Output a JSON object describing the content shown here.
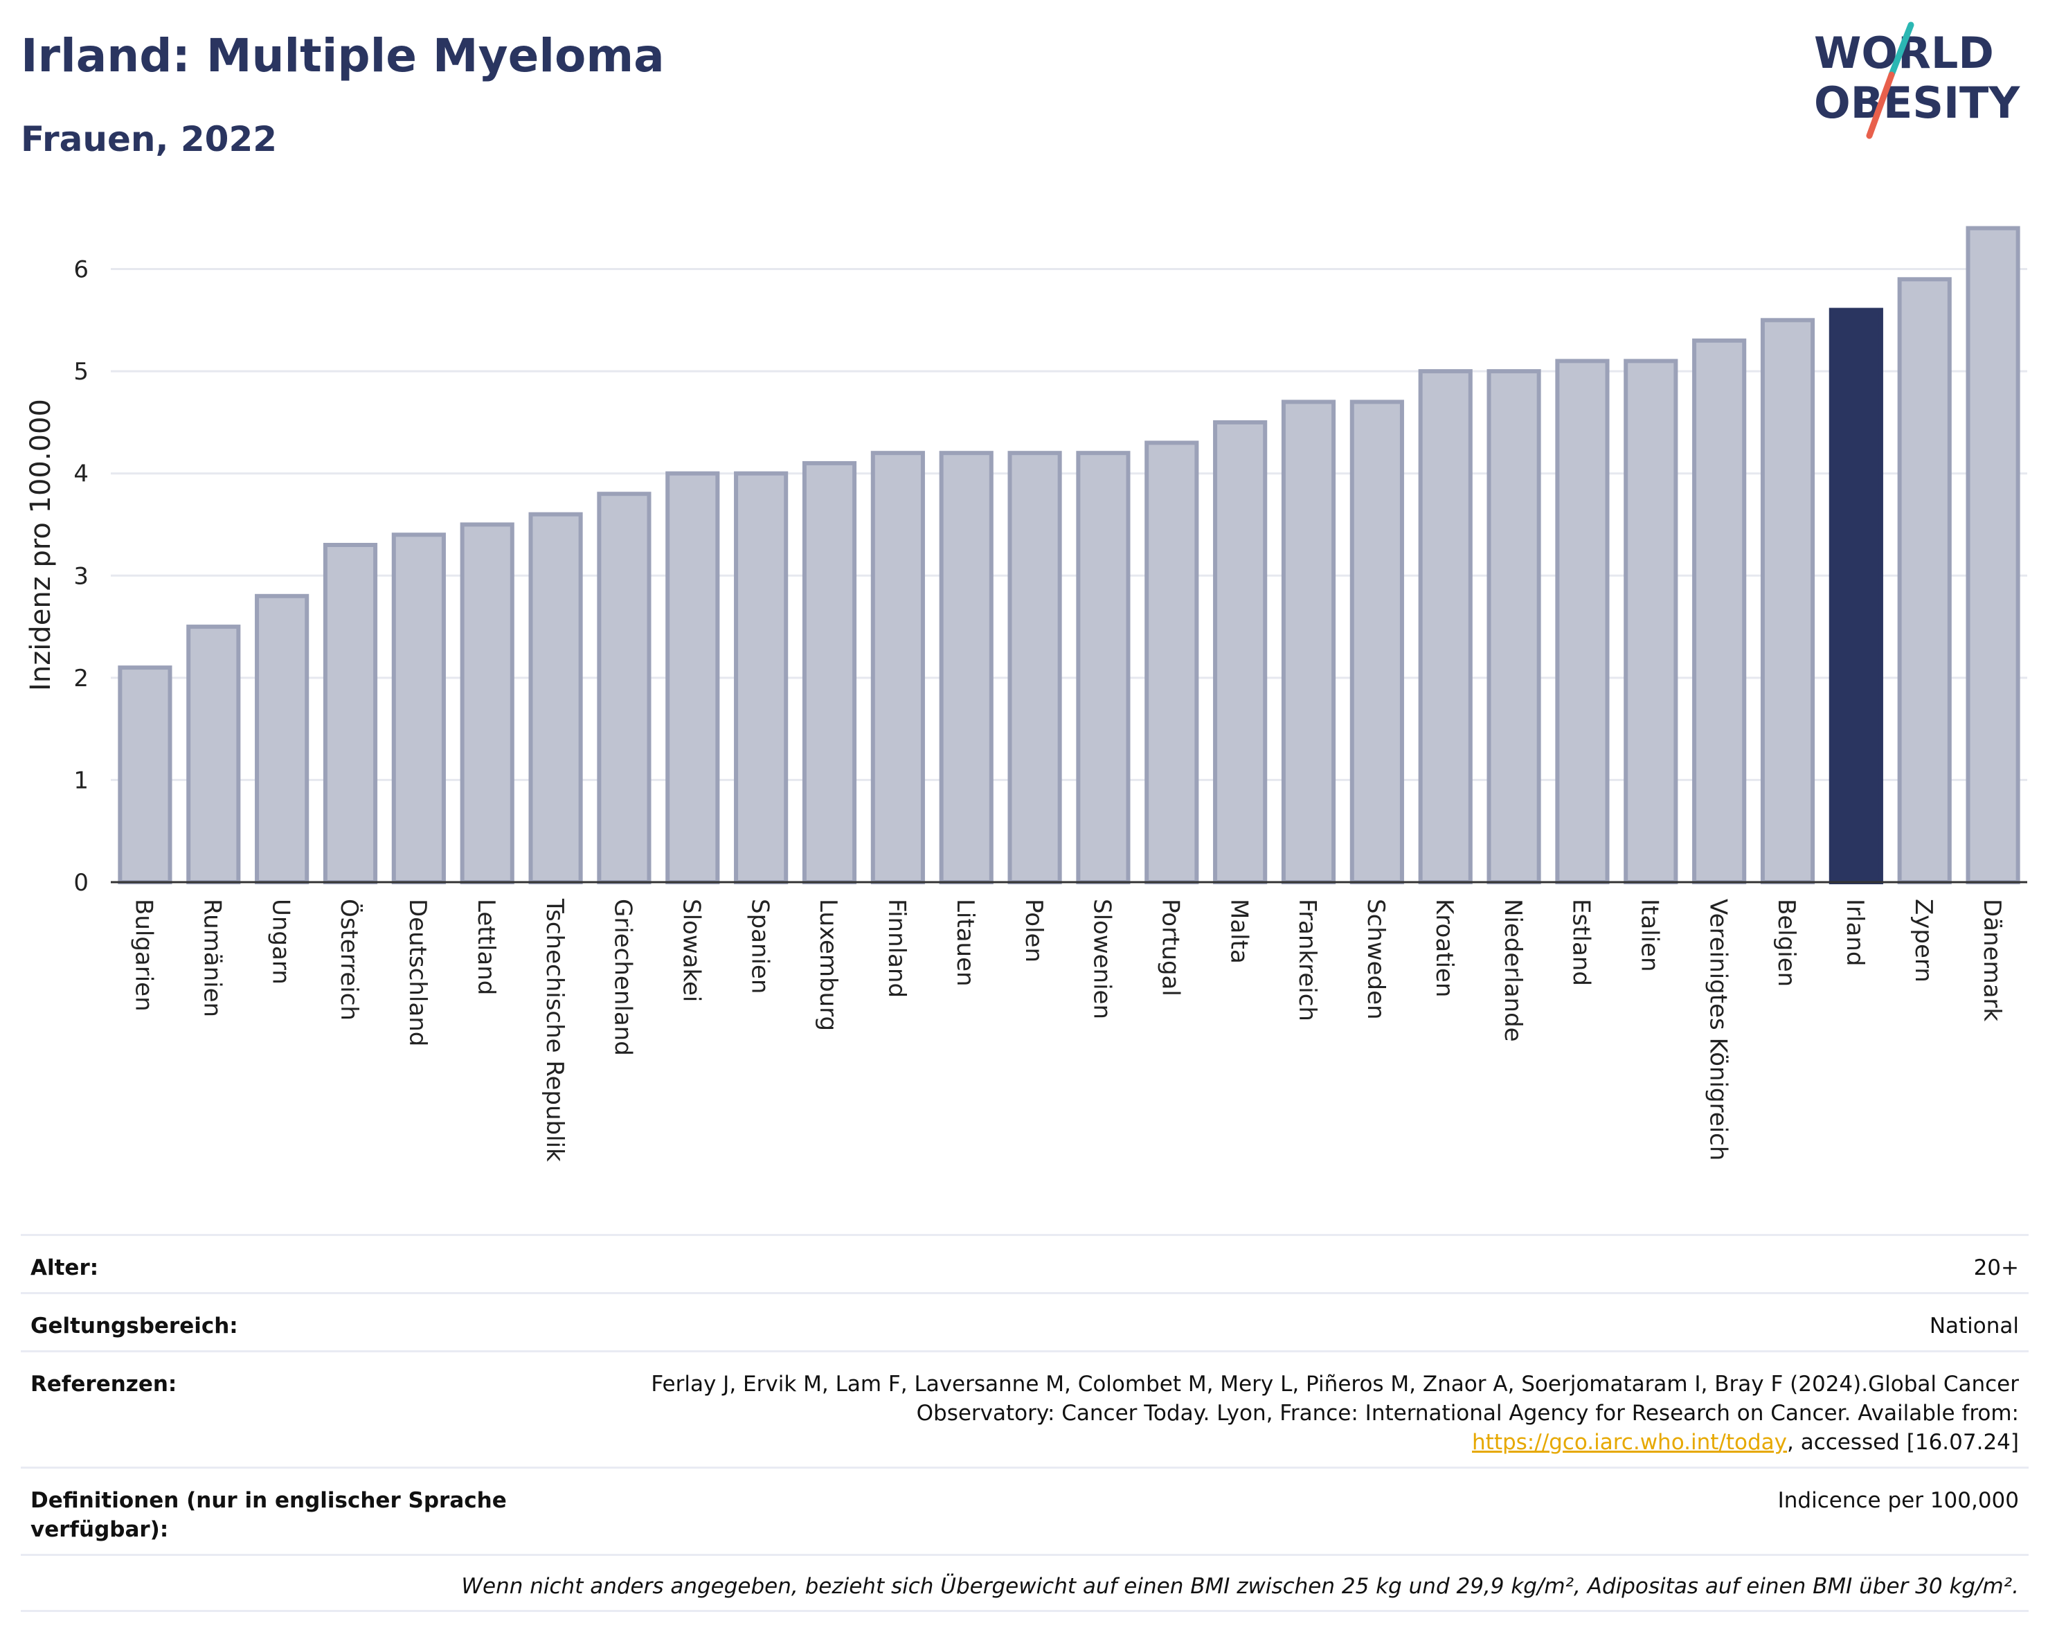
{
  "header": {
    "title": "Irland: Multiple Myeloma",
    "subtitle": "Frauen, 2022"
  },
  "logo": {
    "line1": "WORLD",
    "line2": "OBESITY",
    "colors": {
      "text": "#2a3560",
      "slash_top": "#2bb7b3",
      "slash_bottom": "#e8604c"
    }
  },
  "chart_data": {
    "type": "bar",
    "ylabel": "Inzidenz pro 100.000",
    "xlabel": "",
    "ylim": [
      0,
      6.6
    ],
    "yticks": [
      0,
      1,
      2,
      3,
      4,
      5,
      6
    ],
    "grid": true,
    "highlight": "Irland",
    "colors": {
      "bar": "#bfc3d1",
      "bar_border": "#9ba1b8",
      "highlight": "#2a3560",
      "grid": "#e6e8ef",
      "axis": "#333333"
    },
    "categories": [
      "Bulgarien",
      "Rumänien",
      "Ungarn",
      "Österreich",
      "Deutschland",
      "Lettland",
      "Tschechische Republik",
      "Griechenland",
      "Slowakei",
      "Spanien",
      "Luxemburg",
      "Finnland",
      "Litauen",
      "Polen",
      "Slowenien",
      "Portugal",
      "Malta",
      "Frankreich",
      "Schweden",
      "Kroatien",
      "Niederlande",
      "Estland",
      "Italien",
      "Vereinigtes Königreich",
      "Belgien",
      "Irland",
      "Zypern",
      "Dänemark"
    ],
    "values": [
      2.1,
      2.5,
      2.8,
      3.3,
      3.4,
      3.5,
      3.6,
      3.8,
      4.0,
      4.0,
      4.1,
      4.2,
      4.2,
      4.2,
      4.2,
      4.3,
      4.5,
      4.7,
      4.7,
      5.0,
      5.0,
      5.1,
      5.1,
      5.3,
      5.5,
      5.6,
      5.9,
      6.4
    ]
  },
  "info": {
    "age_label": "Alter:",
    "age_value": "20+",
    "scope_label": "Geltungsbereich:",
    "scope_value": "National",
    "ref_label": "Referenzen:",
    "ref_text_1": "Ferlay J, Ervik M, Lam F, Laversanne M, Colombet M, Mery L, Piñeros M, Znaor A, Soerjomataram I, Bray F (2024).Global Cancer Observatory: Cancer Today. Lyon, France: International Agency for Research on Cancer. Available from: ",
    "ref_link": "https://gco.iarc.who.int/today",
    "ref_text_2": ", accessed [16.07.24]",
    "def_label": "Definitionen (nur in englischer Sprache verfügbar):",
    "def_value": "Indicence per 100,000",
    "note": "Wenn nicht anders angegeben, bezieht sich Übergewicht auf einen BMI zwischen 25 kg und 29,9 kg/m², Adipositas auf einen BMI über 30 kg/m²."
  }
}
